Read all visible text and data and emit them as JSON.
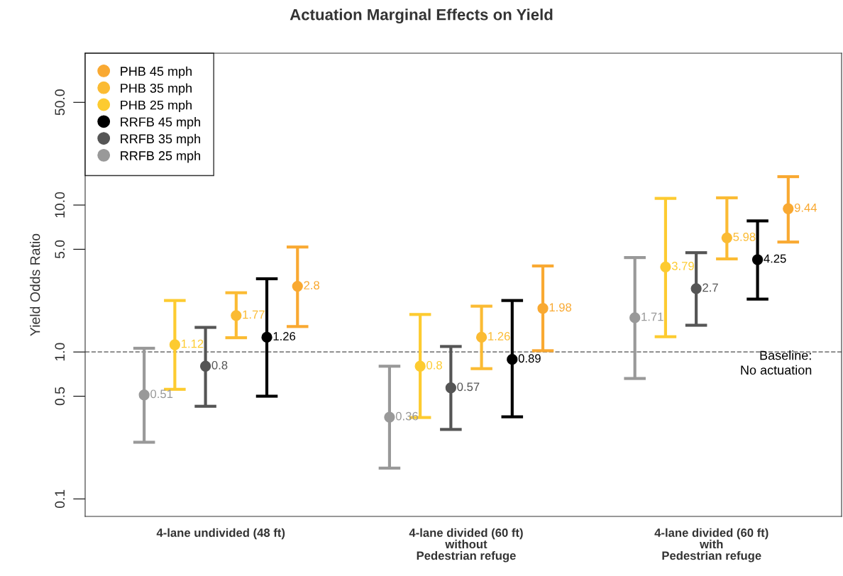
{
  "chart_data": {
    "type": "scatter",
    "title": "Actuation Marginal Effects on Yield",
    "ylabel": "Yield Odds Ratio",
    "categories": [
      "4-lane undivided (48 ft)",
      "4-lane divided (60 ft)\nwithout\nPedestrian refuge",
      "4-lane divided (60 ft)\nwith\nPedestrian refuge"
    ],
    "log": "y",
    "ylim": [
      0.076,
      108
    ],
    "yticks": [
      {
        "value": 0.1,
        "label": "0.1"
      },
      {
        "value": 0.5,
        "label": "0.5"
      },
      {
        "value": 1,
        "label": "1.0"
      },
      {
        "value": 5,
        "label": "5.0"
      },
      {
        "value": 10,
        "label": "10.0"
      },
      {
        "value": 50,
        "label": "50.0"
      }
    ],
    "marker": "circle",
    "data_labels": true,
    "legend": "top left",
    "grid": false,
    "ref_lines": [
      {
        "axis": "y",
        "value": 1,
        "label": "Baseline:\nNo actuation",
        "color": "#808080",
        "line_style": "dashed"
      }
    ],
    "series": [
      {
        "name": "PHB 45 mph",
        "color": "#f9a932",
        "values": [
          2.8,
          1.98,
          9.44
        ],
        "errors": [
          [
            1.49,
            5.18
          ],
          [
            1.02,
            3.85
          ],
          [
            5.6,
            15.6
          ]
        ]
      },
      {
        "name": "PHB 35 mph",
        "color": "#fbbb33",
        "values": [
          1.77,
          1.26,
          5.98
        ],
        "errors": [
          [
            1.25,
            2.53
          ],
          [
            0.77,
            2.05
          ],
          [
            4.3,
            11.2
          ]
        ]
      },
      {
        "name": "PHB 25 mph",
        "color": "#fdcb30",
        "values": [
          1.12,
          0.8,
          3.79
        ],
        "errors": [
          [
            0.557,
            2.24
          ],
          [
            0.358,
            1.8
          ],
          [
            1.27,
            11.1
          ]
        ]
      },
      {
        "name": "RRFB 45 mph",
        "color": "#000000",
        "values": [
          1.26,
          0.89,
          4.25
        ],
        "errors": [
          [
            0.5,
            3.15
          ],
          [
            0.362,
            2.24
          ],
          [
            2.29,
            7.8
          ]
        ]
      },
      {
        "name": "RRFB 35 mph",
        "color": "#555555",
        "values": [
          0.8,
          0.57,
          2.7
        ],
        "errors": [
          [
            0.427,
            1.47
          ],
          [
            0.297,
            1.09
          ],
          [
            1.52,
            4.74
          ]
        ]
      },
      {
        "name": "RRFB 25 mph",
        "color": "#999999",
        "values": [
          0.51,
          0.36,
          1.71
        ],
        "errors": [
          [
            0.243,
            1.06
          ],
          [
            0.162,
            0.8
          ],
          [
            0.66,
            4.39
          ]
        ]
      }
    ]
  }
}
